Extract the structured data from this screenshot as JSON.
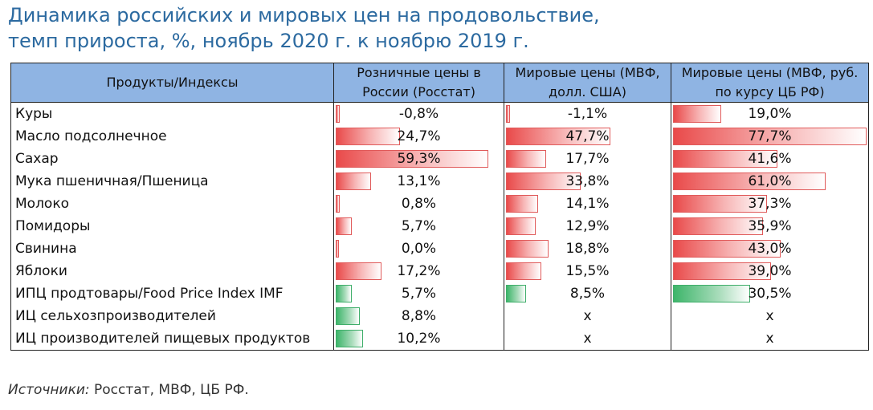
{
  "title_line1": "Динамика российских и мировых цен на продовольствие,",
  "title_line2": "темп прироста, %, ноябрь 2020 г. к ноябрю 2019 г.",
  "source_label": "Источники:",
  "source_text": " Росстат, МВФ, ЦБ РФ.",
  "colors": {
    "positive_bar": "#e94a4a",
    "index_bar": "#3db56a",
    "header": "#8fb4e3",
    "title": "#2c6aa0"
  },
  "chart_data": {
    "type": "table",
    "columns": [
      "Продукты/Индексы",
      "Розничные цены в России (Росстат)",
      "Мировые цены (МВФ, долл. США)",
      "Мировые цены (МВФ, руб. по курсу ЦБ РФ)"
    ],
    "rows": [
      {
        "name": "Куры",
        "values": [
          -0.8,
          -1.1,
          19.0
        ],
        "labels": [
          "-0,8%",
          "-1,1%",
          "19,0%"
        ],
        "color": "red"
      },
      {
        "name": "Масло подсолнечное",
        "values": [
          24.7,
          47.7,
          77.7
        ],
        "labels": [
          "24,7%",
          "47,7%",
          "77,7%"
        ],
        "color": "red"
      },
      {
        "name": "Сахар",
        "values": [
          59.3,
          17.7,
          41.6
        ],
        "labels": [
          "59,3%",
          "17,7%",
          "41,6%"
        ],
        "color": "red"
      },
      {
        "name": "Мука пшеничная/Пшеница",
        "values": [
          13.1,
          33.8,
          61.0
        ],
        "labels": [
          "13,1%",
          "33,8%",
          "61,0%"
        ],
        "color": "red"
      },
      {
        "name": "Молоко",
        "values": [
          0.8,
          14.1,
          37.3
        ],
        "labels": [
          "0,8%",
          "14,1%",
          "37,3%"
        ],
        "color": "red"
      },
      {
        "name": "Помидоры",
        "values": [
          5.7,
          12.9,
          35.9
        ],
        "labels": [
          "5,7%",
          "12,9%",
          "35,9%"
        ],
        "color": "red"
      },
      {
        "name": "Свинина",
        "values": [
          0.0,
          18.8,
          43.0
        ],
        "labels": [
          "0,0%",
          "18,8%",
          "43,0%"
        ],
        "color": "red"
      },
      {
        "name": "Яблоки",
        "values": [
          17.2,
          15.5,
          39.0
        ],
        "labels": [
          "17,2%",
          "15,5%",
          "39,0%"
        ],
        "color": "red"
      },
      {
        "name": "ИПЦ продтовары/Food Price Index IMF",
        "values": [
          5.7,
          8.5,
          30.5
        ],
        "labels": [
          "5,7%",
          "8,5%",
          "30,5%"
        ],
        "color": "green"
      },
      {
        "name": "ИЦ сельхозпроизводителей",
        "values": [
          8.8,
          null,
          null
        ],
        "labels": [
          "8,8%",
          "x",
          "x"
        ],
        "color": "green"
      },
      {
        "name": "ИЦ производителей пищевых продуктов",
        "values": [
          10.2,
          null,
          null
        ],
        "labels": [
          "10,2%",
          "x",
          "x"
        ],
        "color": "green"
      }
    ]
  }
}
